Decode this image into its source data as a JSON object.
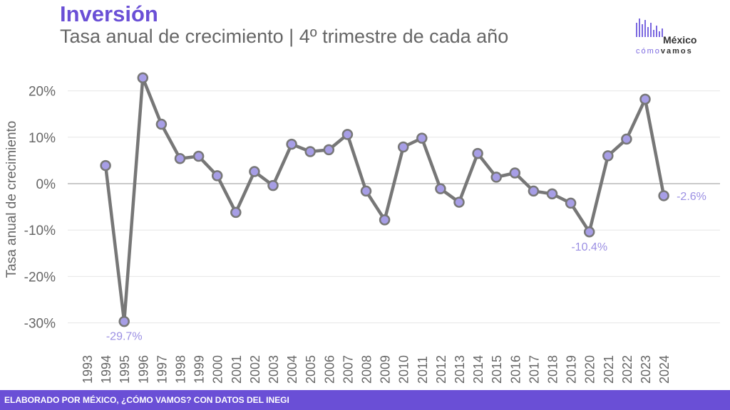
{
  "header": {
    "title": "Inversión",
    "subtitle": "Tasa anual de crecimiento | 4º trimestre de cada año"
  },
  "logo": {
    "line1": "México",
    "line2a": "cómo",
    "line2b": "vamos"
  },
  "footer": {
    "text": "ELABORADO POR MÉXICO, ¿CÓMO VAMOS? CON DATOS DEL INEGI"
  },
  "colors": {
    "accent": "#6a4fd6",
    "line": "#777777",
    "marker": "#a79ee6",
    "label": "#9b8fe3"
  },
  "chart_data": {
    "type": "line",
    "ylabel": "Tasa anual de crecimiento",
    "xlabel": "",
    "ylim": [
      -33,
      25
    ],
    "yticks": [
      20,
      10,
      0,
      -10,
      -20,
      -30
    ],
    "ytick_labels": [
      "20%",
      "10%",
      "0%",
      "-10%",
      "-20%",
      "-30%"
    ],
    "grid": true,
    "x": [
      "1993",
      "1994",
      "1995",
      "1996",
      "1997",
      "1998",
      "1999",
      "2000",
      "2001",
      "2002",
      "2003",
      "2004",
      "2005",
      "2006",
      "2007",
      "2008",
      "2009",
      "2010",
      "2011",
      "2012",
      "2013",
      "2014",
      "2015",
      "2016",
      "2017",
      "2018",
      "2019",
      "2020",
      "2021",
      "2022",
      "2023",
      "2024"
    ],
    "values": [
      null,
      3.9,
      -29.7,
      22.8,
      12.8,
      5.4,
      5.9,
      1.7,
      -6.2,
      2.6,
      -0.4,
      8.5,
      6.9,
      7.3,
      10.6,
      -1.6,
      -7.8,
      7.9,
      9.8,
      -1.1,
      -4.0,
      6.5,
      1.4,
      2.3,
      -1.6,
      -2.2,
      -4.2,
      -10.4,
      6.0,
      9.6,
      18.2,
      -2.6
    ],
    "annotations": [
      {
        "x": "1995",
        "label": "-29.7%"
      },
      {
        "x": "2020",
        "label": "-10.4%"
      },
      {
        "x": "2024",
        "label": "-2.6%"
      }
    ]
  }
}
